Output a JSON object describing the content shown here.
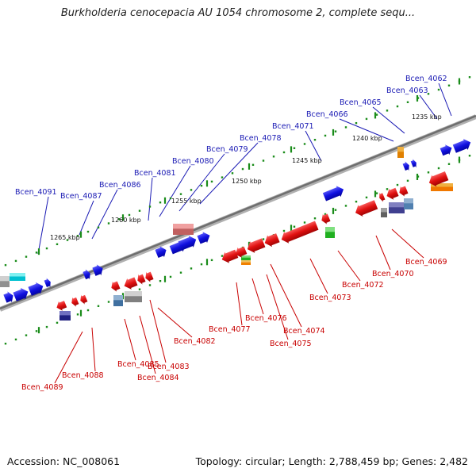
{
  "title": "Burkholderia cenocepacia AU 1054 chromosome 2, complete sequ...",
  "footer": {
    "accession": "Accession: NC_008061",
    "topology": "Topology: circular; Length: 2,788,459 bp; Genes: 2,482"
  },
  "colors": {
    "forward_label": "#1a1ab4",
    "reverse_label": "#c80000",
    "forward_gene": "#1010e0",
    "reverse_gene": "#e01010",
    "tick": "#1a8c1a",
    "backbone": "#808080"
  },
  "scale_ticks": [
    "1235 kbp",
    "1240 kbp",
    "1245 kbp",
    "1250 kbp",
    "1255 kbp",
    "1260 kbp",
    "1265 kbp"
  ],
  "forward_genes": [
    "Bcen_4062",
    "Bcen_4063",
    "Bcen_4065",
    "Bcen_4066",
    "Bcen_4071",
    "Bcen_4078",
    "Bcen_4079",
    "Bcen_4080",
    "Bcen_4081",
    "Bcen_4086",
    "Bcen_4087",
    "Bcen_4091"
  ],
  "reverse_genes": [
    "Bcen_4069",
    "Bcen_4070",
    "Bcen_4072",
    "Bcen_4073",
    "Bcen_4074",
    "Bcen_4075",
    "Bcen_4076",
    "Bcen_4077",
    "Bcen_4082",
    "Bcen_4083",
    "Bcen_4084",
    "Bcen_4085",
    "Bcen_4088",
    "Bcen_4089"
  ]
}
